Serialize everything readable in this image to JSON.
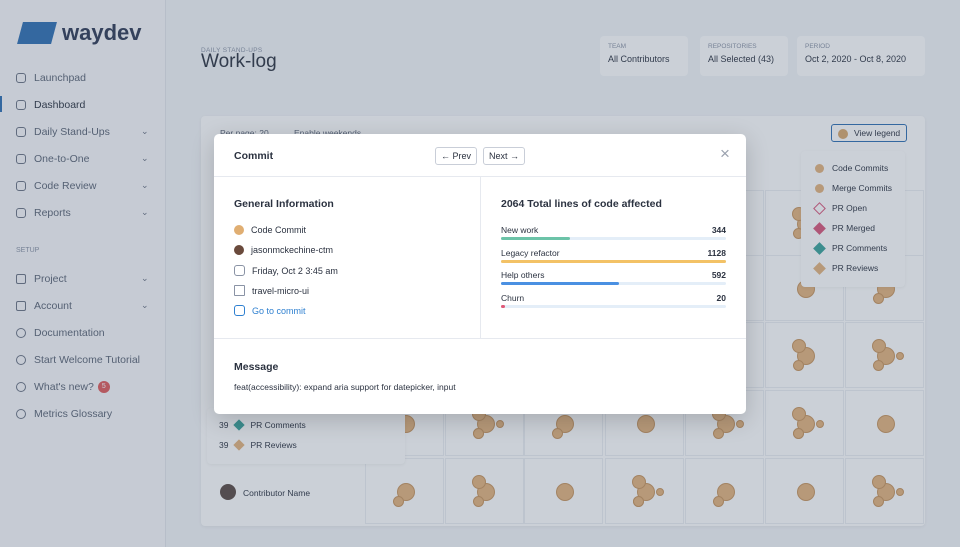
{
  "sidebar": {
    "logo": "waydev",
    "nav": [
      "Launchpad",
      "Dashboard",
      "Daily Stand-Ups",
      "One-to-One",
      "Code Review",
      "Reports"
    ],
    "setup_heading": "SETUP",
    "setup_nav": [
      "Project",
      "Account",
      "Documentation",
      "Start Welcome Tutorial",
      "What's new?",
      "Metrics Glossary"
    ],
    "badge": "5"
  },
  "header": {
    "eyebrow": "DAILY STAND-UPS",
    "title": "Work-log",
    "filters": [
      {
        "label": "TEAM",
        "value": "All Contributors"
      },
      {
        "label": "REPOSITORIES",
        "value": "All Selected (43)"
      },
      {
        "label": "PERIOD",
        "value": "Oct 2, 2020 - Oct 8, 2020"
      }
    ]
  },
  "toolbar": {
    "per_page": "Per page: 20",
    "weekends": "Enable weekends",
    "legend_button": "View legend"
  },
  "legend": [
    "Code Commits",
    "Merge Commits",
    "PR Open",
    "PR Merged",
    "PR Comments",
    "PR Reviews"
  ],
  "summary_rows": [
    {
      "count": 39,
      "label": "PR Comments"
    },
    {
      "count": 39,
      "label": "PR Reviews"
    }
  ],
  "contributor": "Contributor Name",
  "modal": {
    "title": "Commit",
    "prev": "Prev",
    "next": "Next",
    "general": {
      "heading": "General Information",
      "type": "Code Commit",
      "author": "jasonmckechine-ctm",
      "date": "Friday, Oct 2 3:45 am",
      "repository": "travel-micro-ui",
      "link": "Go to commit"
    },
    "stats": {
      "heading": "2064 Total lines of code affected",
      "rows": [
        {
          "label": "New work",
          "value": 344,
          "color": "#6cc3a8"
        },
        {
          "label": "Legacy refactor",
          "value": 1128,
          "color": "#f3c266"
        },
        {
          "label": "Help others",
          "value": 592,
          "color": "#4a90e2"
        },
        {
          "label": "Churn",
          "value": 20,
          "color": "#e05a78"
        }
      ]
    },
    "message": {
      "heading": "Message",
      "text": "feat(accessibility): expand aria support for datepicker, input"
    }
  }
}
